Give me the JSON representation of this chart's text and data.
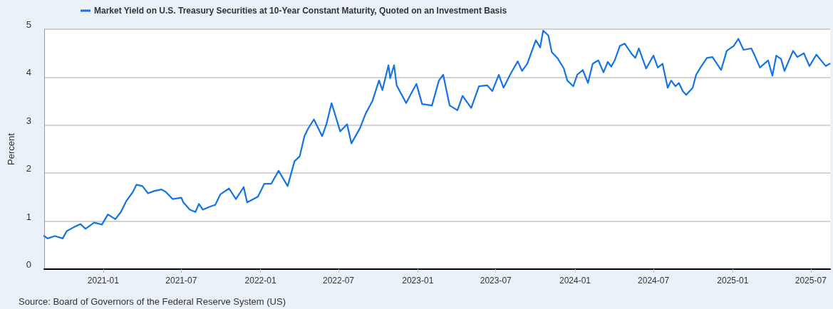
{
  "chart_data": {
    "type": "line",
    "ylabel": "Percent",
    "annotations": [
      "Source: Board of Governors of the Federal Reserve System (US)"
    ],
    "x": [
      "2020-08-17",
      "2020-08-25",
      "2020-09-11",
      "2020-09-29",
      "2020-10-08",
      "2020-10-24",
      "2020-11-09",
      "2020-11-21",
      "2020-12-11",
      "2020-12-29",
      "2021-01-12",
      "2021-01-29",
      "2021-02-11",
      "2021-02-23",
      "2021-03-11",
      "2021-03-19",
      "2021-04-02",
      "2021-04-15",
      "2021-04-30",
      "2021-05-16",
      "2021-05-26",
      "2021-06-11",
      "2021-07-01",
      "2021-07-06",
      "2021-07-21",
      "2021-08-03",
      "2021-08-11",
      "2021-08-20",
      "2021-09-08",
      "2021-09-18",
      "2021-09-30",
      "2021-10-20",
      "2021-11-05",
      "2021-11-23",
      "2021-12-01",
      "2021-12-26",
      "2022-01-10",
      "2022-01-26",
      "2022-02-12",
      "2022-03-05",
      "2022-03-21",
      "2022-04-02",
      "2022-04-13",
      "2022-04-21",
      "2022-05-05",
      "2022-05-24",
      "2022-06-03",
      "2022-06-15",
      "2022-07-05",
      "2022-07-21",
      "2022-07-31",
      "2022-08-20",
      "2022-09-02",
      "2022-09-18",
      "2022-10-03",
      "2022-10-11",
      "2022-10-25",
      "2022-10-29",
      "2022-11-07",
      "2022-11-13",
      "2022-12-05",
      "2022-12-21",
      "2022-12-29",
      "2023-01-11",
      "2023-02-03",
      "2023-02-19",
      "2023-03-01",
      "2023-03-16",
      "2023-04-03",
      "2023-04-15",
      "2023-05-05",
      "2023-05-23",
      "2023-06-11",
      "2023-06-23",
      "2023-07-08",
      "2023-07-19",
      "2023-08-05",
      "2023-08-21",
      "2023-08-31",
      "2023-09-12",
      "2023-10-02",
      "2023-10-12",
      "2023-10-19",
      "2023-10-31",
      "2023-11-08",
      "2023-11-21",
      "2023-12-06",
      "2023-12-14",
      "2023-12-28",
      "2024-01-06",
      "2024-01-19",
      "2024-01-31",
      "2024-02-11",
      "2024-02-24",
      "2024-03-07",
      "2024-03-17",
      "2024-03-25",
      "2024-04-02",
      "2024-04-14",
      "2024-04-25",
      "2024-05-12",
      "2024-05-20",
      "2024-05-28",
      "2024-06-14",
      "2024-07-01",
      "2024-07-11",
      "2024-07-22",
      "2024-08-03",
      "2024-08-11",
      "2024-08-21",
      "2024-08-29",
      "2024-09-07",
      "2024-09-15",
      "2024-09-30",
      "2024-10-08",
      "2024-10-18",
      "2024-11-02",
      "2024-11-15",
      "2024-12-05",
      "2024-12-18",
      "2025-01-03",
      "2025-01-14",
      "2025-01-26",
      "2025-02-13",
      "2025-02-21",
      "2025-03-05",
      "2025-03-24",
      "2025-04-03",
      "2025-04-12",
      "2025-04-23",
      "2025-05-01",
      "2025-05-21",
      "2025-05-31",
      "2025-06-15",
      "2025-06-28",
      "2025-07-14",
      "2025-08-05",
      "2025-08-14"
    ],
    "series": [
      {
        "name": "Market Yield on U.S. Treasury Securities at 10-Year Constant Maturity, Quoted on an Investment Basis",
        "color": "#1473e6",
        "values": [
          0.69,
          0.64,
          0.69,
          0.64,
          0.79,
          0.87,
          0.94,
          0.84,
          0.97,
          0.93,
          1.14,
          1.04,
          1.19,
          1.41,
          1.61,
          1.76,
          1.73,
          1.58,
          1.63,
          1.66,
          1.61,
          1.46,
          1.49,
          1.39,
          1.24,
          1.19,
          1.36,
          1.24,
          1.31,
          1.34,
          1.56,
          1.68,
          1.46,
          1.71,
          1.39,
          1.51,
          1.78,
          1.78,
          2.05,
          1.73,
          2.25,
          2.35,
          2.77,
          2.92,
          3.12,
          2.77,
          3.02,
          3.46,
          2.87,
          3.02,
          2.62,
          2.94,
          3.24,
          3.51,
          3.93,
          3.73,
          4.25,
          3.98,
          4.25,
          3.83,
          3.46,
          3.73,
          3.86,
          3.44,
          3.41,
          3.93,
          4.05,
          3.41,
          3.31,
          3.61,
          3.36,
          3.81,
          3.83,
          3.71,
          4.05,
          3.78,
          4.08,
          4.33,
          4.13,
          4.28,
          4.77,
          4.62,
          4.97,
          4.87,
          4.52,
          4.4,
          4.18,
          3.93,
          3.81,
          4.05,
          4.15,
          3.88,
          4.28,
          4.35,
          4.1,
          4.32,
          4.22,
          4.35,
          4.65,
          4.7,
          4.48,
          4.4,
          4.6,
          4.18,
          4.45,
          4.2,
          4.28,
          3.78,
          3.93,
          3.81,
          3.88,
          3.71,
          3.63,
          3.78,
          4.05,
          4.2,
          4.4,
          4.42,
          4.15,
          4.55,
          4.65,
          4.8,
          4.57,
          4.6,
          4.45,
          4.2,
          4.35,
          4.03,
          4.45,
          4.38,
          4.13,
          4.55,
          4.42,
          4.5,
          4.23,
          4.47,
          4.23,
          4.28
        ]
      }
    ],
    "xlim": [
      "2020-08-17",
      "2025-08-15"
    ],
    "xticks": [
      "2021-01",
      "2021-07",
      "2022-01",
      "2022-07",
      "2023-01",
      "2023-07",
      "2024-01",
      "2024-07",
      "2025-01",
      "2025-07"
    ],
    "ylim": [
      0,
      5
    ],
    "yticks": [
      0,
      1,
      2,
      3,
      4,
      5
    ],
    "grid": "y",
    "legend": "top left",
    "marker": "none",
    "line_style": "solid"
  }
}
